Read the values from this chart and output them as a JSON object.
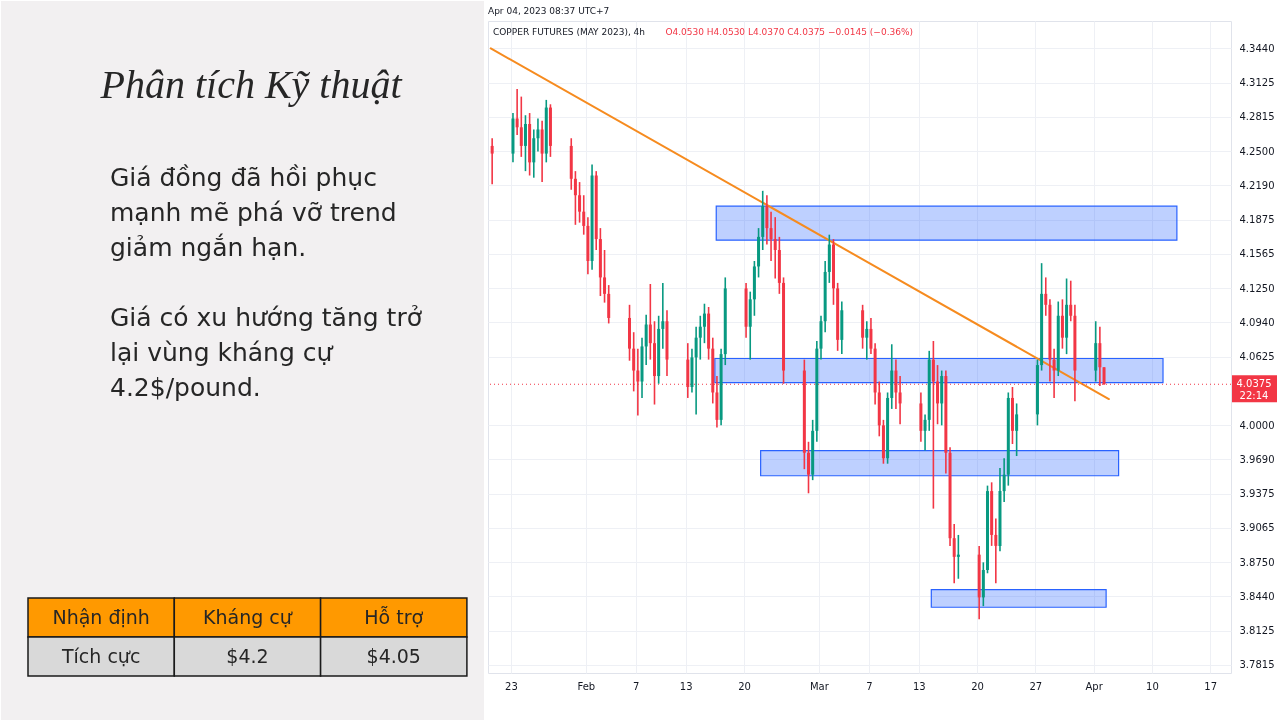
{
  "chart_data": [
    {
      "type": "other",
      "title": "Phân tích Kỹ thuật",
      "annotations": [
        "Giá đồng đã hồi phục mạnh mẽ phá vỡ trend giảm ngắn hạn.",
        "Giá có xu hướng tăng trở lại vùng kháng cự 4.2$/pound.",
        "Nhận định",
        "Kháng cự",
        "Hỗ trợ",
        "Tích cực",
        "$4.2",
        "$4.05"
      ]
    },
    {
      "type": "candlestick",
      "title": "COPPER FUTURES (MAY 2023), 4h",
      "subtitle": "O4.0530 H4.0530 L4.0370 C4.0375 −0.0145 (−0.36%)",
      "annotations": [
        "Apr 04, 2023 08:37 UTC+7",
        "22:14"
      ],
      "x": [
        "2023-01-20T18:00",
        "2023-01-23T06:00",
        "2023-01-23T18:00",
        "2023-01-24T06:00",
        "2023-01-24T18:00",
        "2023-01-25T06:00",
        "2023-01-25T18:00",
        "2023-01-26T06:00",
        "2023-01-26T18:00",
        "2023-01-27T06:00",
        "2023-01-27T18:00",
        "2023-01-30T06:00",
        "2023-01-30T18:00",
        "2023-01-31T06:00",
        "2023-01-31T18:00",
        "2023-02-01T06:00",
        "2023-02-01T18:00",
        "2023-02-02T06:00",
        "2023-02-02T18:00",
        "2023-02-03T06:00",
        "2023-02-03T18:00",
        "2023-02-06T06:00",
        "2023-02-06T18:00",
        "2023-02-07T06:00",
        "2023-02-07T18:00",
        "2023-02-08T06:00",
        "2023-02-08T18:00",
        "2023-02-09T06:00",
        "2023-02-09T18:00",
        "2023-02-10T06:00",
        "2023-02-10T18:00",
        "2023-02-13T06:00",
        "2023-02-13T18:00",
        "2023-02-14T06:00",
        "2023-02-14T18:00",
        "2023-02-15T06:00",
        "2023-02-15T18:00",
        "2023-02-16T06:00",
        "2023-02-16T18:00",
        "2023-02-17T06:00",
        "2023-02-17T18:00",
        "2023-02-20T06:00",
        "2023-02-20T18:00",
        "2023-02-21T06:00",
        "2023-02-21T18:00",
        "2023-02-22T06:00",
        "2023-02-22T18:00",
        "2023-02-23T06:00",
        "2023-02-23T18:00",
        "2023-02-24T06:00",
        "2023-02-24T18:00",
        "2023-02-27T06:00",
        "2023-02-27T18:00",
        "2023-02-28T06:00",
        "2023-02-28T18:00",
        "2023-03-01T06:00",
        "2023-03-01T18:00",
        "2023-03-02T06:00",
        "2023-03-02T18:00",
        "2023-03-03T06:00",
        "2023-03-03T18:00",
        "2023-03-06T06:00",
        "2023-03-06T18:00",
        "2023-03-07T06:00",
        "2023-03-07T18:00",
        "2023-03-08T06:00",
        "2023-03-08T18:00",
        "2023-03-09T06:00",
        "2023-03-09T18:00",
        "2023-03-10T06:00",
        "2023-03-10T18:00",
        "2023-03-13T06:00",
        "2023-03-13T18:00",
        "2023-03-14T06:00",
        "2023-03-14T18:00",
        "2023-03-15T06:00",
        "2023-03-15T18:00",
        "2023-03-16T06:00",
        "2023-03-16T18:00",
        "2023-03-17T06:00",
        "2023-03-17T18:00",
        "2023-03-20T06:00",
        "2023-03-20T18:00",
        "2023-03-21T06:00",
        "2023-03-21T18:00",
        "2023-03-22T06:00",
        "2023-03-22T18:00",
        "2023-03-23T06:00",
        "2023-03-23T18:00",
        "2023-03-24T06:00",
        "2023-03-24T18:00",
        "2023-03-27T06:00",
        "2023-03-27T18:00",
        "2023-03-28T06:00",
        "2023-03-28T18:00",
        "2023-03-29T06:00",
        "2023-03-29T18:00",
        "2023-03-30T06:00",
        "2023-03-30T18:00",
        "2023-03-31T06:00",
        "2023-03-31T18:00",
        "2023-04-03T06:00",
        "2023-04-03T18:00",
        "2023-04-04T06:00"
      ],
      "ohlc": [
        [
          4.255,
          4.262,
          4.22,
          4.248
        ],
        [
          4.248,
          4.285,
          4.24,
          4.28
        ],
        [
          4.28,
          4.307,
          4.265,
          4.272
        ],
        [
          4.272,
          4.3,
          4.245,
          4.255
        ],
        [
          4.255,
          4.283,
          4.232,
          4.275
        ],
        [
          4.275,
          4.285,
          4.228,
          4.24
        ],
        [
          4.24,
          4.27,
          4.226,
          4.262
        ],
        [
          4.262,
          4.28,
          4.25,
          4.27
        ],
        [
          4.27,
          4.278,
          4.222,
          4.248
        ],
        [
          4.248,
          4.297,
          4.24,
          4.29
        ],
        [
          4.29,
          4.293,
          4.245,
          4.255
        ],
        [
          4.255,
          4.262,
          4.215,
          4.225
        ],
        [
          4.225,
          4.232,
          4.183,
          4.21
        ],
        [
          4.21,
          4.222,
          4.185,
          4.195
        ],
        [
          4.195,
          4.21,
          4.174,
          4.182
        ],
        [
          4.182,
          4.19,
          4.138,
          4.15
        ],
        [
          4.15,
          4.238,
          4.142,
          4.228
        ],
        [
          4.228,
          4.232,
          4.16,
          4.17
        ],
        [
          4.17,
          4.18,
          4.118,
          4.135
        ],
        [
          4.135,
          4.16,
          4.112,
          4.12
        ],
        [
          4.12,
          4.128,
          4.093,
          4.098
        ],
        [
          4.098,
          4.11,
          4.059,
          4.07
        ],
        [
          4.07,
          4.085,
          4.031,
          4.05
        ],
        [
          4.05,
          4.07,
          4.009,
          4.04
        ],
        [
          4.04,
          4.08,
          4.025,
          4.072
        ],
        [
          4.072,
          4.101,
          4.055,
          4.092
        ],
        [
          4.092,
          4.129,
          4.06,
          4.075
        ],
        [
          4.075,
          4.095,
          4.019,
          4.045
        ],
        [
          4.045,
          4.1,
          4.038,
          4.088
        ],
        [
          4.088,
          4.13,
          4.07,
          4.095
        ],
        [
          4.095,
          4.105,
          4.045,
          4.06
        ],
        [
          4.06,
          4.075,
          4.025,
          4.035
        ],
        [
          4.035,
          4.07,
          4.03,
          4.062
        ],
        [
          4.062,
          4.09,
          4.01,
          4.08
        ],
        [
          4.08,
          4.1,
          4.06,
          4.09
        ],
        [
          4.09,
          4.111,
          4.075,
          4.102
        ],
        [
          4.102,
          4.108,
          4.06,
          4.07
        ],
        [
          4.07,
          4.08,
          4.02,
          4.03
        ],
        [
          4.03,
          4.045,
          3.998,
          4.005
        ],
        [
          4.005,
          4.07,
          4.0,
          4.065
        ],
        [
          4.065,
          4.135,
          4.055,
          4.125
        ],
        [
          4.125,
          4.13,
          4.08,
          4.09
        ],
        [
          4.09,
          4.122,
          4.06,
          4.115
        ],
        [
          4.115,
          4.15,
          4.1,
          4.145
        ],
        [
          4.145,
          4.18,
          4.135,
          4.172
        ],
        [
          4.172,
          4.214,
          4.16,
          4.2
        ],
        [
          4.2,
          4.21,
          4.165,
          4.18
        ],
        [
          4.18,
          4.195,
          4.15,
          4.17
        ],
        [
          4.17,
          4.19,
          4.134,
          4.16
        ],
        [
          4.16,
          4.172,
          4.12,
          4.13
        ],
        [
          4.13,
          4.135,
          4.038,
          4.05
        ],
        [
          4.05,
          4.06,
          3.96,
          3.975
        ],
        [
          3.975,
          3.985,
          3.938,
          3.955
        ],
        [
          3.955,
          4.005,
          3.95,
          3.995
        ],
        [
          3.995,
          4.077,
          3.985,
          4.07
        ],
        [
          4.07,
          4.1,
          4.06,
          4.095
        ],
        [
          4.095,
          4.15,
          4.085,
          4.14
        ],
        [
          4.14,
          4.174,
          4.13,
          4.165
        ],
        [
          4.165,
          4.17,
          4.11,
          4.125
        ],
        [
          4.125,
          4.13,
          4.068,
          4.078
        ],
        [
          4.078,
          4.113,
          4.065,
          4.105
        ],
        [
          4.105,
          4.11,
          4.07,
          4.08
        ],
        [
          4.08,
          4.095,
          4.06,
          4.088
        ],
        [
          4.088,
          4.098,
          4.065,
          4.07
        ],
        [
          4.07,
          4.075,
          4.019,
          4.03
        ],
        [
          4.03,
          4.04,
          3.99,
          4.0
        ],
        [
          4.0,
          4.005,
          3.965,
          3.97
        ],
        [
          3.97,
          4.03,
          3.965,
          4.025
        ],
        [
          4.025,
          4.074,
          4.015,
          4.05
        ],
        [
          4.05,
          4.06,
          4.015,
          4.03
        ],
        [
          4.03,
          4.045,
          4.001,
          4.02
        ],
        [
          4.02,
          4.03,
          3.985,
          3.995
        ],
        [
          3.995,
          4.01,
          3.977,
          4.005
        ],
        [
          4.005,
          4.068,
          3.995,
          4.06
        ],
        [
          4.06,
          4.077,
          3.924,
          4.04
        ],
        [
          4.04,
          4.055,
          4.001,
          4.02
        ],
        [
          4.02,
          4.05,
          4.0,
          4.045
        ],
        [
          4.045,
          4.05,
          3.956,
          3.975
        ],
        [
          3.975,
          3.98,
          3.89,
          3.897
        ],
        [
          3.897,
          3.91,
          3.856,
          3.88
        ],
        [
          3.88,
          3.9,
          3.86,
          3.882
        ],
        [
          3.882,
          3.89,
          3.823,
          3.843
        ],
        [
          3.843,
          3.875,
          3.835,
          3.868
        ],
        [
          3.868,
          3.945,
          3.865,
          3.94
        ],
        [
          3.94,
          3.948,
          3.89,
          3.9
        ],
        [
          3.9,
          3.915,
          3.856,
          3.89
        ],
        [
          3.89,
          3.961,
          3.885,
          3.94
        ],
        [
          3.94,
          3.97,
          3.93,
          3.955
        ],
        [
          3.955,
          4.03,
          3.945,
          4.025
        ],
        [
          4.025,
          4.035,
          3.983,
          3.995
        ],
        [
          3.995,
          4.02,
          3.972,
          4.01
        ],
        [
          4.01,
          4.06,
          4.0,
          4.055
        ],
        [
          4.055,
          4.148,
          4.05,
          4.12
        ],
        [
          4.12,
          4.135,
          4.1,
          4.11
        ],
        [
          4.11,
          4.115,
          4.04,
          4.06
        ],
        [
          4.06,
          4.07,
          4.025,
          4.05
        ],
        [
          4.05,
          4.113,
          4.045,
          4.1
        ],
        [
          4.1,
          4.115,
          4.07,
          4.08
        ],
        [
          4.08,
          4.134,
          4.065,
          4.11
        ],
        [
          4.11,
          4.132,
          4.095,
          4.1
        ],
        [
          4.1,
          4.11,
          4.022,
          4.05
        ],
        [
          4.05,
          4.095,
          4.04,
          4.075
        ],
        [
          4.075,
          4.09,
          4.036,
          4.053
        ],
        [
          4.053,
          4.053,
          4.037,
          4.0375
        ]
      ],
      "series": [
        {
          "type": "area",
          "x": [
            "2023-02-16T16:00",
            "2023-04-13T00:00"
          ],
          "values": [
            null,
            null
          ],
          "lower": [
            4.169,
            4.169
          ],
          "upper": [
            4.2,
            4.2
          ],
          "color": "#2962ff"
        },
        {
          "type": "area",
          "x": [
            "2023-02-16T12:00",
            "2023-04-11T08:00"
          ],
          "values": [
            null,
            null
          ],
          "lower": [
            4.039,
            4.039
          ],
          "upper": [
            4.061,
            4.061
          ],
          "color": "#2962ff"
        },
        {
          "type": "area",
          "x": [
            "2023-02-22T00:00",
            "2023-04-06T00:00"
          ],
          "values": [
            null,
            null
          ],
          "lower": [
            3.954,
            3.954
          ],
          "upper": [
            3.977,
            3.977
          ],
          "color": "#2962ff"
        },
        {
          "type": "area",
          "x": [
            "2023-03-14T12:00",
            "2023-04-04T12:00"
          ],
          "values": [
            null,
            null
          ],
          "lower": [
            3.834,
            3.834
          ],
          "upper": [
            3.85,
            3.85
          ],
          "color": "#2962ff"
        },
        {
          "type": "line",
          "x": [
            "2023-01-20T14:00",
            "2023-04-04T20:00"
          ],
          "values": [
            4.344,
            4.024
          ],
          "color": "#f68b1f"
        }
      ],
      "xlim": [
        "2023-01-20T06:00",
        "2023-04-19T12:00"
      ],
      "ylim": [
        3.774,
        4.369
      ],
      "xticks": [
        {
          "value": "2023-01-23",
          "label": "23"
        },
        {
          "value": "2023-02-01",
          "label": "Feb"
        },
        {
          "value": "2023-02-07",
          "label": "7"
        },
        {
          "value": "2023-02-13",
          "label": "13"
        },
        {
          "value": "2023-02-20",
          "label": "20"
        },
        {
          "value": "2023-03-01",
          "label": "Mar"
        },
        {
          "value": "2023-03-07",
          "label": "7"
        },
        {
          "value": "2023-03-13",
          "label": "13"
        },
        {
          "value": "2023-03-20",
          "label": "20"
        },
        {
          "value": "2023-03-27",
          "label": "27"
        },
        {
          "value": "2023-04-03",
          "label": "Apr"
        },
        {
          "value": "2023-04-10",
          "label": "10"
        },
        {
          "value": "2023-04-17",
          "label": "17"
        }
      ],
      "yticks": [
        {
          "value": 4.344,
          "label": "4.3440"
        },
        4.3125,
        4.2815,
        {
          "value": 4.25,
          "label": "4.2500"
        },
        {
          "value": 4.219,
          "label": "4.2190"
        },
        4.1875,
        4.1565,
        {
          "value": 4.125,
          "label": "4.1250"
        },
        {
          "value": 4.094,
          "label": "4.0940"
        },
        4.0625,
        {
          "value": 4.0,
          "label": "4.0000"
        },
        {
          "value": 3.969,
          "label": "3.9690"
        },
        3.9375,
        3.9065,
        {
          "value": 3.875,
          "label": "3.8750"
        },
        {
          "value": 3.844,
          "label": "3.8440"
        },
        3.8125,
        3.7815
      ],
      "ref_lines": [
        {
          "axis": "y",
          "value": 4.0375,
          "label": "4.0375",
          "color": "#f23645",
          "line_style": "dotted"
        }
      ],
      "grid": true
    }
  ]
}
